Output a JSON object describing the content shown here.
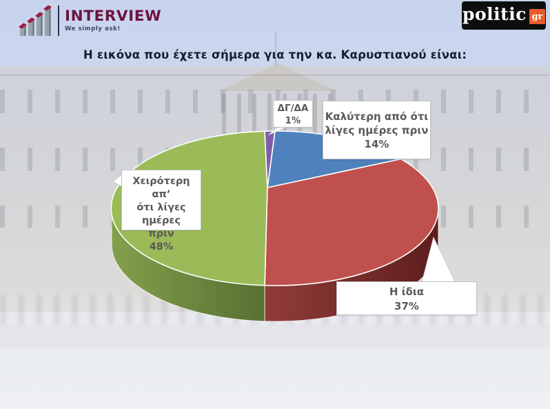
{
  "title": "Η εικόνα που έχετε σήμερα για την κα. Καρυστιανού είναι:",
  "logos": {
    "interview": {
      "name": "INTERVIEW",
      "tagline": "We simply ask!"
    },
    "politic": {
      "name": "politic",
      "suffix": "gr"
    }
  },
  "chart_data": {
    "type": "pie",
    "projection": "3d",
    "title": "Η εικόνα που έχετε σήμερα για την κα. Καρυστιανού είναι:",
    "start_angle_deg": 0,
    "direction": "clockwise",
    "legend_position": "callout-labels",
    "segments": [
      {
        "label": "Καλύτερη από ότι λίγες ημέρες πριν",
        "value_pct": 14,
        "color": "#4f81bd"
      },
      {
        "label": "Η ίδια",
        "value_pct": 37,
        "color": "#c0504d",
        "side_from": "#903c39",
        "side_to": "#5e1e1d"
      },
      {
        "label": "Χειρότερη απ’ ότι λίγες ημέρες πριν",
        "value_pct": 48,
        "color": "#9bbb59",
        "side_from": "#82a04d",
        "side_to": "#587031"
      },
      {
        "label": "ΔΓ/ΔΑ",
        "value_pct": 1,
        "color": "#7d5fa9"
      }
    ]
  },
  "callouts": {
    "dgda": {
      "lines": [
        "ΔΓ/ΔΑ",
        "1%"
      ]
    },
    "better": {
      "lines": [
        "Καλύτερη από ότι",
        "λίγες ημέρες πριν",
        "14%"
      ]
    },
    "worse": {
      "lines": [
        "Χειρότερη απ’",
        "ότι λίγες ημέρες",
        "πριν",
        "48%"
      ]
    },
    "same": {
      "lines": [
        "Η ίδια",
        "37%"
      ]
    }
  }
}
